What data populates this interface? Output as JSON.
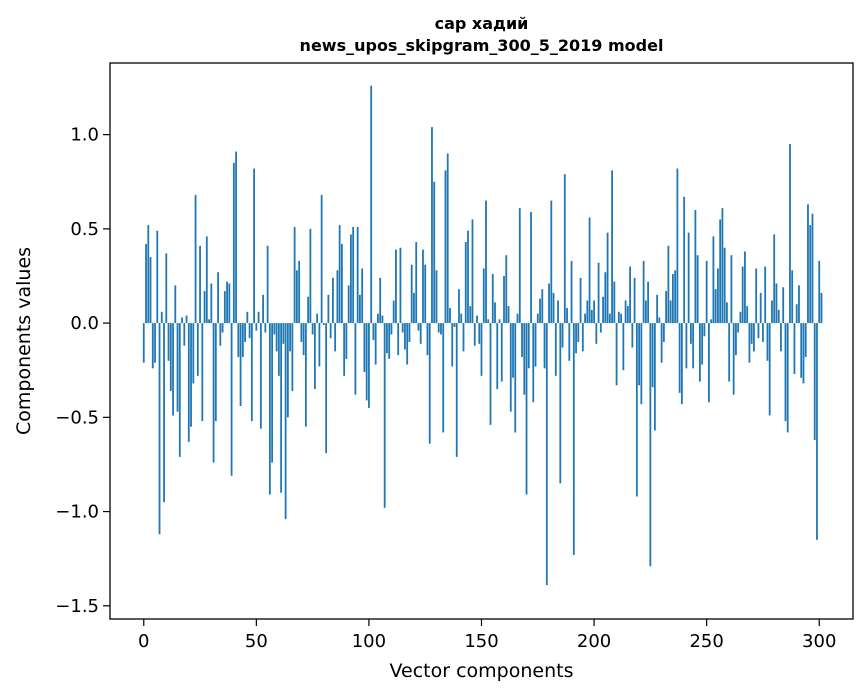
{
  "chart_data": {
    "type": "bar",
    "title": "сар хадий",
    "subtitle": "news_upos_skipgram_300_5_2019 model",
    "xlabel": "Vector components",
    "ylabel": "Components values",
    "xlim": [
      -15,
      315
    ],
    "ylim": [
      -1.57,
      1.38
    ],
    "xticks": [
      0,
      50,
      100,
      150,
      200,
      250,
      300
    ],
    "xtick_labels": [
      "0",
      "50",
      "100",
      "150",
      "200",
      "250",
      "300"
    ],
    "yticks": [
      -1.5,
      -1.0,
      -0.5,
      0.0,
      0.5,
      1.0
    ],
    "ytick_labels": [
      "−1.5",
      "−1.0",
      "−0.5",
      "0.0",
      "0.5",
      "1.0"
    ],
    "grid": false,
    "bar_color": "#1f77b4",
    "values": [
      -0.21,
      0.42,
      0.52,
      0.35,
      -0.24,
      -0.21,
      0.49,
      -1.12,
      0.06,
      -0.95,
      0.37,
      -0.2,
      -0.36,
      -0.49,
      0.2,
      -0.47,
      -0.71,
      0.03,
      -0.12,
      0.04,
      -0.63,
      -0.55,
      -0.32,
      0.68,
      -0.28,
      0.41,
      -0.52,
      0.17,
      0.46,
      0.02,
      0.21,
      -0.74,
      -0.52,
      0.27,
      -0.12,
      -0.05,
      0.17,
      0.22,
      0.21,
      -0.81,
      0.85,
      0.91,
      -0.18,
      -0.44,
      -0.18,
      -0.1,
      0.06,
      -0.08,
      -0.52,
      0.82,
      -0.04,
      0.06,
      -0.56,
      0.15,
      -0.05,
      0.41,
      -0.91,
      -0.74,
      -0.06,
      -0.15,
      -0.28,
      -0.9,
      -0.11,
      -1.04,
      -0.5,
      -0.15,
      -0.36,
      0.51,
      0.28,
      0.33,
      -0.1,
      -0.17,
      -0.55,
      0.14,
      0.5,
      -0.06,
      -0.35,
      0.05,
      -0.23,
      0.68,
      -0.01,
      -0.69,
      0.15,
      -0.08,
      0.24,
      -0.15,
      0.28,
      0.52,
      0.42,
      -0.28,
      -0.19,
      0.2,
      0.47,
      0.51,
      -0.38,
      0.51,
      0.15,
      0.29,
      -0.26,
      -0.41,
      -0.45,
      1.26,
      -0.09,
      -0.22,
      0.05,
      0.24,
      0.04,
      -0.98,
      -0.16,
      -0.19,
      -0.06,
      0.12,
      0.39,
      -0.17,
      0.4,
      -0.05,
      -0.14,
      -0.22,
      -0.1,
      0.31,
      0.16,
      0.43,
      -0.04,
      -0.11,
      0.39,
      0.31,
      -0.17,
      -0.64,
      1.04,
      0.75,
      0.28,
      -0.05,
      -0.06,
      -0.58,
      0.81,
      0.9,
      0.08,
      -0.23,
      -0.02,
      -0.71,
      0.18,
      0.05,
      -0.15,
      0.43,
      0.49,
      0.09,
      0.55,
      -0.12,
      0.04,
      -0.11,
      -0.28,
      0.29,
      0.65,
      0.02,
      -0.54,
      0.26,
      0.11,
      -0.35,
      0.02,
      -0.31,
      0.25,
      0.36,
      0.09,
      -0.47,
      -0.29,
      -0.58,
      0.05,
      0.61,
      -0.18,
      -0.38,
      -0.91,
      -0.24,
      0.59,
      -0.42,
      -0.23,
      0.05,
      0.13,
      0.18,
      -0.24,
      -1.39,
      0.21,
      0.65,
      0.16,
      -0.28,
      0.12,
      -0.85,
      -0.13,
      0.79,
      0.08,
      -0.2,
      0.33,
      -1.23,
      -0.16,
      -0.1,
      0.24,
      -0.15,
      0.05,
      0.12,
      0.56,
      0.07,
      0.12,
      -0.11,
      0.32,
      -0.05,
      0.14,
      0.27,
      0.48,
      0.05,
      0.81,
      0.22,
      -0.33,
      0.06,
      0.05,
      -0.25,
      0.12,
      0.09,
      0.3,
      -0.13,
      0.24,
      -0.92,
      -0.33,
      -0.43,
      0.33,
      0.12,
      0.22,
      -1.29,
      -0.34,
      -0.57,
      0.15,
      0.03,
      -0.21,
      -0.1,
      0.17,
      0.41,
      0.12,
      0.26,
      0.28,
      0.82,
      -0.37,
      -0.43,
      0.67,
      -0.24,
      0.48,
      -0.11,
      -0.24,
      0.6,
      0.36,
      -0.31,
      -0.22,
      -0.07,
      0.33,
      -0.42,
      0.02,
      0.46,
      0.18,
      0.29,
      0.55,
      0.61,
      0.4,
      0.11,
      -0.31,
      0.36,
      -0.38,
      -0.17,
      -0.05,
      0.06,
      0.3,
      0.38,
      0.09,
      -0.21,
      -0.11,
      -0.15,
      0.29,
      -0.08,
      0.16,
      -0.1,
      0.3,
      -0.2,
      -0.49,
      0.12,
      0.47,
      0.21,
      0.07,
      -0.15,
      0.19,
      -0.52,
      -0.58,
      0.95,
      0.28,
      -0.27,
      0.1,
      0.2,
      -0.29,
      -0.32,
      -0.18,
      0.63,
      0.52,
      0.58,
      -0.62,
      -1.15,
      0.33,
      0.16
    ],
    "source": "matplotlib"
  }
}
